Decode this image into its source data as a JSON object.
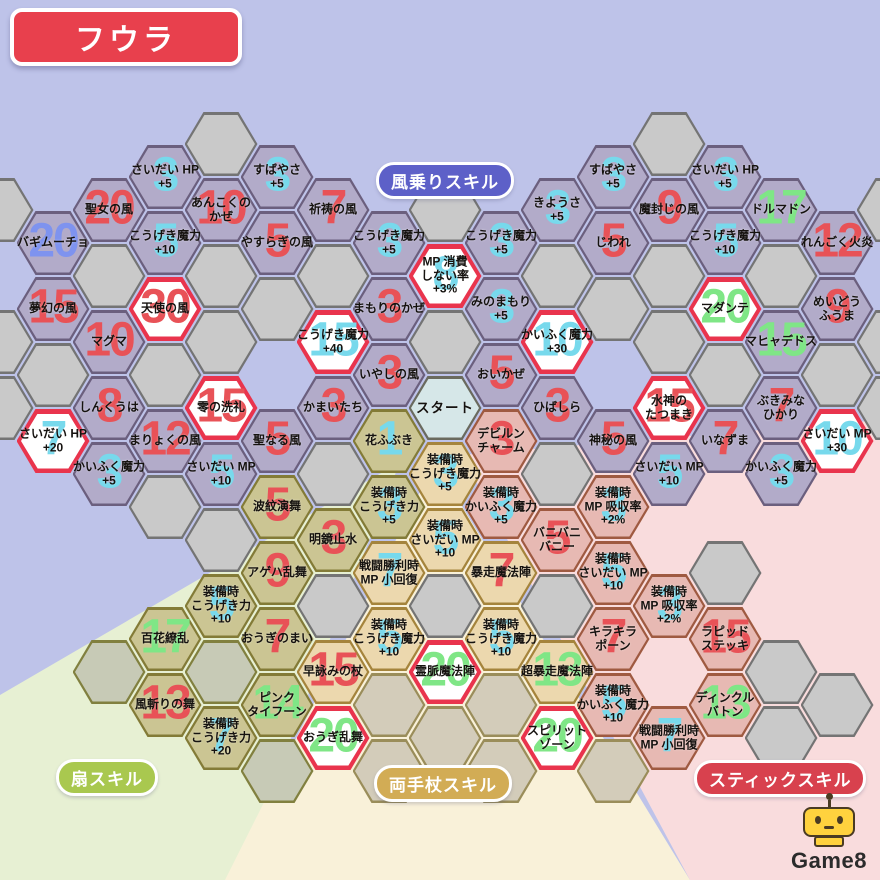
{
  "title": "フウラ",
  "labels": {
    "wind": "風乗りスキル",
    "fan": "扇スキル",
    "staff": "両手杖スキル",
    "stick": "スティックスキル"
  },
  "logo_text": "Game8",
  "colors": {
    "page_bg": "#bec3e9",
    "title_bg": "#e8404d",
    "wind_pill_bg": "#5d60c8",
    "fan_pill_bg": "#a9c84f",
    "staff_pill_bg": "#d2ac55",
    "stick_pill_bg": "#d8414e",
    "fan_wedge": "#e7f0d3",
    "staff_wedge": "#f9f1d9",
    "stick_wedge": "#f9dcdd",
    "hex_types": {
      "wind": {
        "fill": "#b2abc9",
        "border": "#6b5f7e"
      },
      "fan": {
        "fill": "#cbc593",
        "border": "#837b37"
      },
      "staff": {
        "fill": "#ecd8ae",
        "border": "#a5843c"
      },
      "stick": {
        "fill": "#e7b9b3",
        "border": "#9f5a41"
      },
      "unlock": {
        "fill": "#ffffff",
        "border": "#e9344d"
      },
      "start": {
        "fill": "#d6e7e8",
        "border": "#6a6a5e"
      },
      "empty": {
        "fill": "#c9c9c9",
        "border": "#747474"
      },
      "empty_olive": {
        "fill": "#c7cab6",
        "border": "#81803f"
      },
      "empty_tan": {
        "fill": "#d3ccba",
        "border": "#9a8d5a"
      }
    },
    "numbers": {
      "red": "#e85257",
      "cyan": "#77d9ec",
      "blue": "#7e93ef",
      "green": "#7fe686"
    }
  },
  "hexes": [
    {
      "col": -7,
      "row": -5,
      "type": "wind",
      "num": "20",
      "num_color": "blue",
      "label": "バギムーチョ"
    },
    {
      "col": -6,
      "row": -6,
      "type": "wind",
      "num": "20",
      "num_color": "red",
      "label": "聖女の風"
    },
    {
      "col": -5,
      "row": -7,
      "type": "wind",
      "num": "3",
      "num_color": "cyan",
      "label": "さいだい HP\n+5"
    },
    {
      "col": -5,
      "row": -5,
      "type": "wind",
      "num": "5",
      "num_color": "cyan",
      "label": "こうげき魔力\n+10"
    },
    {
      "col": -4,
      "row": -6,
      "type": "wind",
      "num": "10",
      "num_color": "red",
      "label": "あんこくの\nかぜ"
    },
    {
      "col": -3,
      "row": -7,
      "type": "wind",
      "num": "3",
      "num_color": "cyan",
      "label": "すばやさ\n+5"
    },
    {
      "col": -3,
      "row": -5,
      "type": "wind",
      "num": "5",
      "num_color": "red",
      "label": "やすらぎの風"
    },
    {
      "col": -2,
      "row": -6,
      "type": "wind",
      "num": "7",
      "num_color": "red",
      "label": "祈祷の風"
    },
    {
      "col": -7,
      "row": -3,
      "type": "wind",
      "num": "15",
      "num_color": "red",
      "label": "夢幻の風"
    },
    {
      "col": -6,
      "row": -2,
      "type": "wind",
      "num": "10",
      "num_color": "red",
      "label": "マグマ"
    },
    {
      "col": -5,
      "row": -3,
      "type": "unlock",
      "num": "30",
      "num_color": "red",
      "label": "天使の風"
    },
    {
      "col": -2,
      "row": -2,
      "type": "unlock",
      "num": "15",
      "num_color": "cyan",
      "label": "こうげき魔力\n+40"
    },
    {
      "col": -6,
      "row": 0,
      "type": "wind",
      "num": "8",
      "num_color": "red",
      "label": "しんくうは"
    },
    {
      "col": -7,
      "row": 1,
      "type": "unlock",
      "num": "7",
      "num_color": "cyan",
      "label": "さいだい HP\n+20"
    },
    {
      "col": -5,
      "row": 1,
      "type": "wind",
      "num": "12",
      "num_color": "red",
      "label": "まりょくの風"
    },
    {
      "col": -4,
      "row": 0,
      "type": "unlock",
      "num": "15",
      "num_color": "red",
      "label": "零の洗礼"
    },
    {
      "col": -6,
      "row": 2,
      "type": "wind",
      "num": "3",
      "num_color": "cyan",
      "label": "かいふく魔力\n+5"
    },
    {
      "col": -4,
      "row": 2,
      "type": "wind",
      "num": "5",
      "num_color": "cyan",
      "label": "さいだい MP\n+10"
    },
    {
      "col": -3,
      "row": 1,
      "type": "wind",
      "num": "5",
      "num_color": "red",
      "label": "聖なる風"
    },
    {
      "col": -2,
      "row": 0,
      "type": "wind",
      "num": "3",
      "num_color": "red",
      "label": "かまいたち"
    },
    {
      "col": -1,
      "row": -5,
      "type": "wind",
      "num": "3",
      "num_color": "cyan",
      "label": "こうげき魔力\n+5"
    },
    {
      "col": -1,
      "row": -3,
      "type": "wind",
      "num": "3",
      "num_color": "red",
      "label": "まもりのかぜ"
    },
    {
      "col": -1,
      "row": -1,
      "type": "wind",
      "num": "3",
      "num_color": "red",
      "label": "いやしの風"
    },
    {
      "col": 0,
      "row": -4,
      "type": "unlock",
      "num": "8",
      "num_color": "cyan",
      "label": "MP 消費\nしない率\n+3%"
    },
    {
      "col": 0,
      "row": 0,
      "type": "start",
      "num": "",
      "num_color": "red",
      "label": "スタート"
    },
    {
      "col": 1,
      "row": -5,
      "type": "wind",
      "num": "3",
      "num_color": "cyan",
      "label": "こうげき魔力\n+5"
    },
    {
      "col": 1,
      "row": -3,
      "type": "wind",
      "num": "3",
      "num_color": "cyan",
      "label": "みのまもり\n+5"
    },
    {
      "col": 1,
      "row": -1,
      "type": "wind",
      "num": "5",
      "num_color": "red",
      "label": "おいかぜ"
    },
    {
      "col": 2,
      "row": -6,
      "type": "wind",
      "num": "3",
      "num_color": "cyan",
      "label": "きようさ\n+5"
    },
    {
      "col": 3,
      "row": -7,
      "type": "wind",
      "num": "3",
      "num_color": "cyan",
      "label": "すばやさ\n+5"
    },
    {
      "col": 3,
      "row": -5,
      "type": "wind",
      "num": "5",
      "num_color": "red",
      "label": "じわれ"
    },
    {
      "col": 4,
      "row": -6,
      "type": "wind",
      "num": "9",
      "num_color": "red",
      "label": "魔封じの風"
    },
    {
      "col": 5,
      "row": -7,
      "type": "wind",
      "num": "3",
      "num_color": "cyan",
      "label": "さいだい HP\n+5"
    },
    {
      "col": 5,
      "row": -5,
      "type": "wind",
      "num": "5",
      "num_color": "cyan",
      "label": "こうげき魔力\n+10"
    },
    {
      "col": 6,
      "row": -6,
      "type": "wind",
      "num": "17",
      "num_color": "green",
      "label": "ドルマドン"
    },
    {
      "col": 7,
      "row": -5,
      "type": "wind",
      "num": "12",
      "num_color": "red",
      "label": "れんごく火炎"
    },
    {
      "col": 5,
      "row": -3,
      "type": "unlock",
      "num": "20",
      "num_color": "green",
      "label": "マダンテ"
    },
    {
      "col": 7,
      "row": -3,
      "type": "wind",
      "num": "9",
      "num_color": "red",
      "label": "めいどう\nふうま"
    },
    {
      "col": 6,
      "row": -2,
      "type": "wind",
      "num": "15",
      "num_color": "green",
      "label": "マヒャデドス"
    },
    {
      "col": 2,
      "row": -2,
      "type": "unlock",
      "num": "10",
      "num_color": "cyan",
      "label": "かいふく魔力\n+30"
    },
    {
      "col": 2,
      "row": 0,
      "type": "wind",
      "num": "3",
      "num_color": "red",
      "label": "ひばしら"
    },
    {
      "col": 4,
      "row": 0,
      "type": "unlock",
      "num": "15",
      "num_color": "red",
      "label": "水神の\nたつまき"
    },
    {
      "col": 6,
      "row": 0,
      "type": "wind",
      "num": "7",
      "num_color": "red",
      "label": "ぶきみな\nひかり"
    },
    {
      "col": 5,
      "row": 1,
      "type": "wind",
      "num": "7",
      "num_color": "red",
      "label": "いなずま"
    },
    {
      "col": 7,
      "row": 1,
      "type": "unlock",
      "num": "10",
      "num_color": "cyan",
      "label": "さいだい MP\n+30"
    },
    {
      "col": 3,
      "row": 1,
      "type": "wind",
      "num": "5",
      "num_color": "red",
      "label": "神秘の風"
    },
    {
      "col": 4,
      "row": 2,
      "type": "wind",
      "num": "5",
      "num_color": "cyan",
      "label": "さいだい MP\n+10"
    },
    {
      "col": 6,
      "row": 2,
      "type": "wind",
      "num": "3",
      "num_color": "cyan",
      "label": "かいふく魔力\n+5"
    },
    {
      "col": -1,
      "row": 1,
      "type": "fan",
      "num": "1",
      "num_color": "cyan",
      "label": "花ふぶき"
    },
    {
      "col": -1,
      "row": 3,
      "type": "fan",
      "num": "3",
      "num_color": "cyan",
      "label": "装備時\nこうげき力\n+5"
    },
    {
      "col": -3,
      "row": 3,
      "type": "fan",
      "num": "5",
      "num_color": "red",
      "label": "波紋演舞"
    },
    {
      "col": -2,
      "row": 4,
      "type": "fan",
      "num": "3",
      "num_color": "red",
      "label": "明鏡止水"
    },
    {
      "col": -3,
      "row": 5,
      "type": "fan",
      "num": "9",
      "num_color": "red",
      "label": "アゲハ乱舞"
    },
    {
      "col": -4,
      "row": 6,
      "type": "fan",
      "num": "5",
      "num_color": "cyan",
      "label": "装備時\nこうげき力\n+10"
    },
    {
      "col": -5,
      "row": 7,
      "type": "fan",
      "num": "17",
      "num_color": "green",
      "label": "百花繚乱"
    },
    {
      "col": -3,
      "row": 7,
      "type": "fan",
      "num": "7",
      "num_color": "red",
      "label": "おうぎのまい"
    },
    {
      "col": -5,
      "row": 9,
      "type": "fan",
      "num": "13",
      "num_color": "red",
      "label": "風斬りの舞"
    },
    {
      "col": -4,
      "row": 10,
      "type": "fan",
      "num": "7",
      "num_color": "cyan",
      "label": "装備時\nこうげき力\n+20"
    },
    {
      "col": -3,
      "row": 9,
      "type": "fan",
      "num": "14",
      "num_color": "green",
      "label": "ピンク\nタイフーン"
    },
    {
      "col": -2,
      "row": 10,
      "type": "unlock",
      "num": "20",
      "num_color": "green",
      "label": "おうぎ乱舞"
    },
    {
      "col": 0,
      "row": 2,
      "type": "staff",
      "num": "3",
      "num_color": "cyan",
      "label": "装備時\nこうげき魔力\n+5"
    },
    {
      "col": 0,
      "row": 4,
      "type": "staff",
      "num": "5",
      "num_color": "cyan",
      "label": "装備時\nさいだい MP\n+10"
    },
    {
      "col": -1,
      "row": 5,
      "type": "staff",
      "num": "7",
      "num_color": "cyan",
      "label": "戦闘勝利時\nMP 小回復"
    },
    {
      "col": 1,
      "row": 5,
      "type": "staff",
      "num": "7",
      "num_color": "red",
      "label": "暴走魔法陣"
    },
    {
      "col": -1,
      "row": 7,
      "type": "staff",
      "num": "5",
      "num_color": "cyan",
      "label": "装備時\nこうげき魔力\n+10"
    },
    {
      "col": 1,
      "row": 7,
      "type": "staff",
      "num": "5",
      "num_color": "cyan",
      "label": "装備時\nこうげき魔力\n+10"
    },
    {
      "col": -2,
      "row": 8,
      "type": "staff",
      "num": "15",
      "num_color": "red",
      "label": "早詠みの杖"
    },
    {
      "col": 0,
      "row": 8,
      "type": "unlock",
      "num": "20",
      "num_color": "green",
      "label": "霊脈魔法陣"
    },
    {
      "col": 2,
      "row": 8,
      "type": "staff",
      "num": "13",
      "num_color": "green",
      "label": "超暴走魔法陣"
    },
    {
      "col": 2,
      "row": 10,
      "type": "unlock",
      "num": "20",
      "num_color": "green",
      "label": "スピリット\nゾーン"
    },
    {
      "col": 1,
      "row": 1,
      "type": "stick",
      "num": "3",
      "num_color": "red",
      "label": "デビルン\nチャーム"
    },
    {
      "col": 1,
      "row": 3,
      "type": "stick",
      "num": "3",
      "num_color": "cyan",
      "label": "装備時\nかいふく魔力\n+5"
    },
    {
      "col": 2,
      "row": 4,
      "type": "stick",
      "num": "5",
      "num_color": "red",
      "label": "バニバニ\nバニー"
    },
    {
      "col": 3,
      "row": 3,
      "type": "stick",
      "num": "3",
      "num_color": "cyan",
      "label": "装備時\nMP 吸収率\n+2%"
    },
    {
      "col": 3,
      "row": 5,
      "type": "stick",
      "num": "5",
      "num_color": "cyan",
      "label": "装備時\nさいだい MP\n+10"
    },
    {
      "col": 4,
      "row": 6,
      "type": "stick",
      "num": "3",
      "num_color": "cyan",
      "label": "装備時\nMP 吸収率\n+2%"
    },
    {
      "col": 3,
      "row": 7,
      "type": "stick",
      "num": "7",
      "num_color": "red",
      "label": "キラキラ\nポーン"
    },
    {
      "col": 5,
      "row": 7,
      "type": "stick",
      "num": "15",
      "num_color": "red",
      "label": "ラピッド\nステッキ"
    },
    {
      "col": 3,
      "row": 9,
      "type": "stick",
      "num": "5",
      "num_color": "cyan",
      "label": "装備時\nかいふく魔力\n+10"
    },
    {
      "col": 5,
      "row": 9,
      "type": "stick",
      "num": "13",
      "num_color": "green",
      "label": "ディンクル\nバトン"
    },
    {
      "col": 4,
      "row": 10,
      "type": "stick",
      "num": "7",
      "num_color": "cyan",
      "label": "戦闘勝利時\nMP 小回復"
    },
    {
      "col": -4,
      "row": -8,
      "type": "empty",
      "num": "",
      "num_color": "red",
      "label": ""
    },
    {
      "col": 4,
      "row": -8,
      "type": "empty",
      "num": "",
      "num_color": "red",
      "label": ""
    },
    {
      "col": -8,
      "row": -6,
      "type": "empty",
      "num": "",
      "num_color": "red",
      "label": ""
    },
    {
      "col": 8,
      "row": -6,
      "type": "empty",
      "num": "",
      "num_color": "red",
      "label": ""
    },
    {
      "col": -8,
      "row": -2,
      "type": "empty",
      "num": "",
      "num_color": "red",
      "label": ""
    },
    {
      "col": 8,
      "row": -2,
      "type": "empty",
      "num": "",
      "num_color": "red",
      "label": ""
    },
    {
      "col": -8,
      "row": 0,
      "type": "empty",
      "num": "",
      "num_color": "red",
      "label": ""
    },
    {
      "col": 8,
      "row": 0,
      "type": "empty",
      "num": "",
      "num_color": "red",
      "label": ""
    },
    {
      "col": -6,
      "row": -4,
      "type": "empty",
      "num": "",
      "num_color": "red",
      "label": ""
    },
    {
      "col": -4,
      "row": -4,
      "type": "empty",
      "num": "",
      "num_color": "red",
      "label": ""
    },
    {
      "col": -2,
      "row": -4,
      "type": "empty",
      "num": "",
      "num_color": "red",
      "label": ""
    },
    {
      "col": 0,
      "row": -6,
      "type": "empty",
      "num": "",
      "num_color": "red",
      "label": ""
    },
    {
      "col": 2,
      "row": -4,
      "type": "empty",
      "num": "",
      "num_color": "red",
      "label": ""
    },
    {
      "col": 4,
      "row": -4,
      "type": "empty",
      "num": "",
      "num_color": "red",
      "label": ""
    },
    {
      "col": 6,
      "row": -4,
      "type": "empty",
      "num": "",
      "num_color": "red",
      "label": ""
    },
    {
      "col": -4,
      "row": -2,
      "type": "empty",
      "num": "",
      "num_color": "red",
      "label": ""
    },
    {
      "col": 4,
      "row": -2,
      "type": "empty",
      "num": "",
      "num_color": "red",
      "label": ""
    },
    {
      "col": -3,
      "row": -3,
      "type": "empty",
      "num": "",
      "num_color": "red",
      "label": ""
    },
    {
      "col": 3,
      "row": -3,
      "type": "empty",
      "num": "",
      "num_color": "red",
      "label": ""
    },
    {
      "col": -7,
      "row": -1,
      "type": "empty",
      "num": "",
      "num_color": "red",
      "label": ""
    },
    {
      "col": -5,
      "row": -1,
      "type": "empty",
      "num": "",
      "num_color": "red",
      "label": ""
    },
    {
      "col": 5,
      "row": -1,
      "type": "empty",
      "num": "",
      "num_color": "red",
      "label": ""
    },
    {
      "col": 7,
      "row": -1,
      "type": "empty",
      "num": "",
      "num_color": "red",
      "label": ""
    },
    {
      "col": 0,
      "row": -2,
      "type": "empty",
      "num": "",
      "num_color": "red",
      "label": ""
    },
    {
      "col": -2,
      "row": 2,
      "type": "empty",
      "num": "",
      "num_color": "red",
      "label": ""
    },
    {
      "col": 2,
      "row": 2,
      "type": "empty",
      "num": "",
      "num_color": "red",
      "label": ""
    },
    {
      "col": -5,
      "row": 3,
      "type": "empty",
      "num": "",
      "num_color": "red",
      "label": ""
    },
    {
      "col": -4,
      "row": 4,
      "type": "empty",
      "num": "",
      "num_color": "red",
      "label": ""
    },
    {
      "col": 5,
      "row": 5,
      "type": "empty",
      "num": "",
      "num_color": "red",
      "label": ""
    },
    {
      "col": -2,
      "row": 6,
      "type": "empty",
      "num": "",
      "num_color": "red",
      "label": ""
    },
    {
      "col": 0,
      "row": 6,
      "type": "empty",
      "num": "",
      "num_color": "red",
      "label": ""
    },
    {
      "col": 2,
      "row": 6,
      "type": "empty",
      "num": "",
      "num_color": "red",
      "label": ""
    },
    {
      "col": 6,
      "row": 8,
      "type": "empty",
      "num": "",
      "num_color": "red",
      "label": ""
    },
    {
      "col": 7,
      "row": 9,
      "type": "empty",
      "num": "",
      "num_color": "red",
      "label": ""
    },
    {
      "col": 6,
      "row": 10,
      "type": "empty",
      "num": "",
      "num_color": "red",
      "label": ""
    },
    {
      "col": -6,
      "row": 8,
      "type": "empty_olive",
      "num": "",
      "num_color": "red",
      "label": ""
    },
    {
      "col": -4,
      "row": 8,
      "type": "empty_olive",
      "num": "",
      "num_color": "red",
      "label": ""
    },
    {
      "col": -3,
      "row": 11,
      "type": "empty_olive",
      "num": "",
      "num_color": "red",
      "label": ""
    },
    {
      "col": -1,
      "row": 9,
      "type": "empty_tan",
      "num": "",
      "num_color": "red",
      "label": ""
    },
    {
      "col": 1,
      "row": 9,
      "type": "empty_tan",
      "num": "",
      "num_color": "red",
      "label": ""
    },
    {
      "col": -1,
      "row": 11,
      "type": "empty_tan",
      "num": "",
      "num_color": "red",
      "label": ""
    },
    {
      "col": 0,
      "row": 10,
      "type": "empty_tan",
      "num": "",
      "num_color": "red",
      "label": ""
    },
    {
      "col": 1,
      "row": 11,
      "type": "empty_tan",
      "num": "",
      "num_color": "red",
      "label": ""
    },
    {
      "col": 3,
      "row": 11,
      "type": "empty_tan",
      "num": "",
      "num_color": "red",
      "label": ""
    }
  ]
}
